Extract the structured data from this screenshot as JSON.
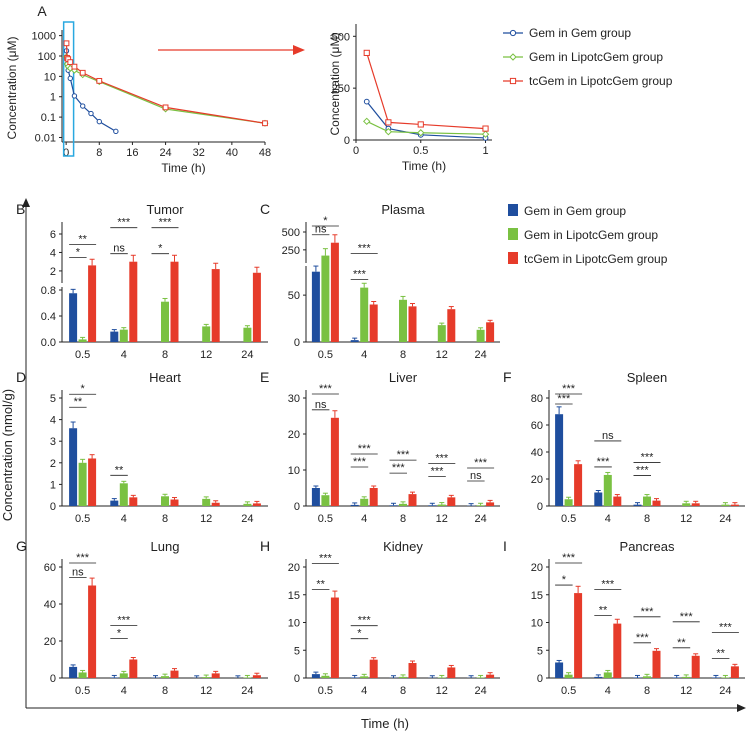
{
  "colors": {
    "gem": "#1F4E9E",
    "lipo_gem": "#7AC142",
    "tc_gem": "#E63B2A",
    "axis": "#222222"
  },
  "main_xlabel": "Time (h)",
  "main_ylabel": "Concentration (nmol/g)",
  "legend_A": [
    "Gem in Gem group",
    "Gem in LipotcGem group",
    "tcGem in LipotcGem group"
  ],
  "legend_bars": [
    "Gem in Gem group",
    "Gem in LipotcGem group",
    "tcGem in LipotcGem group"
  ],
  "chart_data": [
    {
      "id": "A",
      "type": "line",
      "panel_label": "A",
      "xlabel": "Time (h)",
      "ylabel": "Concentration (μM)",
      "yscale": "log",
      "xticks": [
        "0",
        "8",
        "16",
        "24",
        "32",
        "40",
        "48"
      ],
      "yticks": [
        "1000",
        "100",
        "10",
        "1",
        "0.1",
        "0.01"
      ],
      "xlim": [
        -1,
        48
      ],
      "ylim": [
        0.006,
        1200
      ],
      "series": [
        {
          "name": "Gem in Gem group",
          "x": [
            0.083,
            0.25,
            0.5,
            1,
            2,
            4,
            6,
            8,
            12
          ],
          "values": [
            180,
            40,
            20,
            8,
            1.1,
            0.35,
            0.15,
            0.06,
            0.02
          ]
        },
        {
          "name": "Gem in LipotcGem group",
          "x": [
            0.083,
            0.25,
            0.5,
            1,
            2,
            4,
            8,
            24,
            48
          ],
          "values": [
            90,
            40,
            30,
            25,
            20,
            12,
            5.5,
            0.25,
            0.05
          ]
        },
        {
          "name": "tcGem in LipotcGem group",
          "x": [
            0.083,
            0.25,
            0.5,
            1,
            2,
            4,
            8,
            24,
            48
          ],
          "values": [
            420,
            80,
            70,
            50,
            30,
            15,
            6,
            0.3,
            0.05
          ]
        }
      ]
    },
    {
      "id": "A_zoom",
      "type": "line",
      "xlabel": "Time (h)",
      "ylabel": "Concentration (μM)",
      "xticks": [
        "0",
        "0.5",
        "1"
      ],
      "yticks": [
        "0",
        "250",
        "500"
      ],
      "xlim": [
        0,
        1.05
      ],
      "ylim": [
        0,
        540
      ],
      "series": [
        {
          "name": "Gem in Gem group",
          "x": [
            0.083,
            0.25,
            0.5,
            1
          ],
          "values": [
            185,
            55,
            25,
            10
          ]
        },
        {
          "name": "Gem in LipotcGem group",
          "x": [
            0.083,
            0.25,
            0.5,
            1
          ],
          "values": [
            90,
            40,
            35,
            28
          ]
        },
        {
          "name": "tcGem in LipotcGem group",
          "x": [
            0.083,
            0.25,
            0.5,
            1
          ],
          "values": [
            420,
            85,
            75,
            55
          ]
        }
      ]
    },
    {
      "id": "B",
      "type": "bar",
      "panel_label": "B",
      "title": "Tumor",
      "categories": [
        "0.5",
        "4",
        "8",
        "12",
        "24"
      ],
      "series": [
        {
          "name": "Gem in Gem group",
          "values": [
            0.75,
            0.16,
            0.0,
            0.0,
            0.0
          ]
        },
        {
          "name": "Gem in LipotcGem group",
          "values": [
            0.04,
            0.19,
            0.62,
            0.24,
            0.22
          ]
        },
        {
          "name": "tcGem in LipotcGem group",
          "values": [
            2.6,
            3.0,
            3.0,
            2.2,
            1.8
          ]
        }
      ],
      "annotations": [
        "**",
        "*",
        "ns",
        "***",
        "***",
        "*"
      ]
    },
    {
      "id": "C",
      "type": "bar",
      "panel_label": "C",
      "title": "Plasma",
      "categories": [
        "0.5",
        "4",
        "8",
        "12",
        "24"
      ],
      "series": [
        {
          "name": "Gem in Gem group",
          "values": [
            75,
            2,
            0,
            0,
            0
          ]
        },
        {
          "name": "Gem in LipotcGem group",
          "values": [
            170,
            58,
            45,
            18,
            13
          ]
        },
        {
          "name": "tcGem in LipotcGem group",
          "values": [
            350,
            40,
            38,
            35,
            21
          ]
        }
      ],
      "annotations": [
        "*",
        "ns",
        "***",
        "***"
      ]
    },
    {
      "id": "D",
      "type": "bar",
      "panel_label": "D",
      "title": "Heart",
      "categories": [
        "0.5",
        "4",
        "8",
        "12",
        "24"
      ],
      "ylim": [
        0,
        5
      ],
      "yticks": [
        "0",
        "1",
        "2",
        "3",
        "4",
        "5"
      ],
      "series": [
        {
          "name": "Gem in Gem group",
          "values": [
            3.6,
            0.25,
            0.0,
            0.0,
            0.0
          ]
        },
        {
          "name": "Gem in LipotcGem group",
          "values": [
            2.0,
            1.05,
            0.45,
            0.33,
            0.1
          ]
        },
        {
          "name": "tcGem in LipotcGem group",
          "values": [
            2.2,
            0.4,
            0.3,
            0.15,
            0.12
          ]
        }
      ],
      "annotations": [
        "*",
        "**",
        "**"
      ]
    },
    {
      "id": "E",
      "type": "bar",
      "panel_label": "E",
      "title": "Liver",
      "categories": [
        "0.5",
        "4",
        "8",
        "12",
        "24"
      ],
      "ylim": [
        0,
        30
      ],
      "yticks": [
        "0",
        "10",
        "20",
        "30"
      ],
      "series": [
        {
          "name": "Gem in Gem group",
          "values": [
            5.0,
            0.3,
            0.2,
            0.2,
            0.1
          ]
        },
        {
          "name": "Gem in LipotcGem group",
          "values": [
            3.0,
            2.0,
            0.6,
            0.4,
            0.2
          ]
        },
        {
          "name": "tcGem in LipotcGem group",
          "values": [
            24.5,
            5.0,
            3.3,
            2.4,
            1.0
          ]
        }
      ],
      "annotations": [
        "***",
        "ns",
        "***",
        "***",
        "***",
        "***",
        "***",
        "***",
        "***",
        "ns"
      ]
    },
    {
      "id": "F",
      "type": "bar",
      "panel_label": "F",
      "title": "Spleen",
      "categories": [
        "0.5",
        "4",
        "8",
        "12",
        "24"
      ],
      "ylim": [
        0,
        80
      ],
      "yticks": [
        "0",
        "20",
        "40",
        "60",
        "80"
      ],
      "series": [
        {
          "name": "Gem in Gem group",
          "values": [
            68,
            10,
            1.0,
            0.0,
            0.0
          ]
        },
        {
          "name": "Gem in LipotcGem group",
          "values": [
            5,
            23,
            7,
            2,
            1
          ]
        },
        {
          "name": "tcGem in LipotcGem group",
          "values": [
            31,
            7,
            4,
            2,
            1
          ]
        }
      ],
      "annotations": [
        "***",
        "***",
        "ns",
        "***",
        "***",
        "***"
      ]
    },
    {
      "id": "G",
      "type": "bar",
      "panel_label": "G",
      "title": "Lung",
      "categories": [
        "0.5",
        "4",
        "8",
        "12",
        "24"
      ],
      "ylim": [
        0,
        60
      ],
      "yticks": [
        "0",
        "20",
        "40",
        "60"
      ],
      "series": [
        {
          "name": "Gem in Gem group",
          "values": [
            6,
            0.3,
            0.2,
            0.1,
            0.1
          ]
        },
        {
          "name": "Gem in LipotcGem group",
          "values": [
            3,
            2.5,
            1.0,
            0.5,
            0.3
          ]
        },
        {
          "name": "tcGem in LipotcGem group",
          "values": [
            50,
            10,
            4,
            2.5,
            1.5
          ]
        }
      ],
      "annotations": [
        "***",
        "ns",
        "***",
        "*"
      ]
    },
    {
      "id": "H",
      "type": "bar",
      "panel_label": "H",
      "title": "Kidney",
      "categories": [
        "0.5",
        "4",
        "8",
        "12",
        "24"
      ],
      "ylim": [
        0,
        20
      ],
      "yticks": [
        "0",
        "5",
        "10",
        "15",
        "20"
      ],
      "series": [
        {
          "name": "Gem in Gem group",
          "values": [
            0.7,
            0.1,
            0.05,
            0.05,
            0.05
          ]
        },
        {
          "name": "Gem in LipotcGem group",
          "values": [
            0.4,
            0.3,
            0.2,
            0.1,
            0.1
          ]
        },
        {
          "name": "tcGem in LipotcGem group",
          "values": [
            14.5,
            3.3,
            2.7,
            1.9,
            0.6
          ]
        }
      ],
      "annotations": [
        "***",
        "**",
        "***",
        "*"
      ]
    },
    {
      "id": "I",
      "type": "bar",
      "panel_label": "I",
      "title": "Pancreas",
      "categories": [
        "0.5",
        "4",
        "8",
        "12",
        "24"
      ],
      "ylim": [
        0,
        20
      ],
      "yticks": [
        "0",
        "5",
        "10",
        "15",
        "20"
      ],
      "series": [
        {
          "name": "Gem in Gem group",
          "values": [
            2.8,
            0.2,
            0.1,
            0.1,
            0.1
          ]
        },
        {
          "name": "Gem in LipotcGem group",
          "values": [
            0.6,
            1.0,
            0.3,
            0.2,
            0.1
          ]
        },
        {
          "name": "tcGem in LipotcGem group",
          "values": [
            15.3,
            9.8,
            4.9,
            4.0,
            2.1
          ]
        }
      ],
      "annotations": [
        "***",
        "*",
        "***",
        "**",
        "***",
        "***",
        "***",
        "**",
        "***",
        "**"
      ]
    }
  ]
}
